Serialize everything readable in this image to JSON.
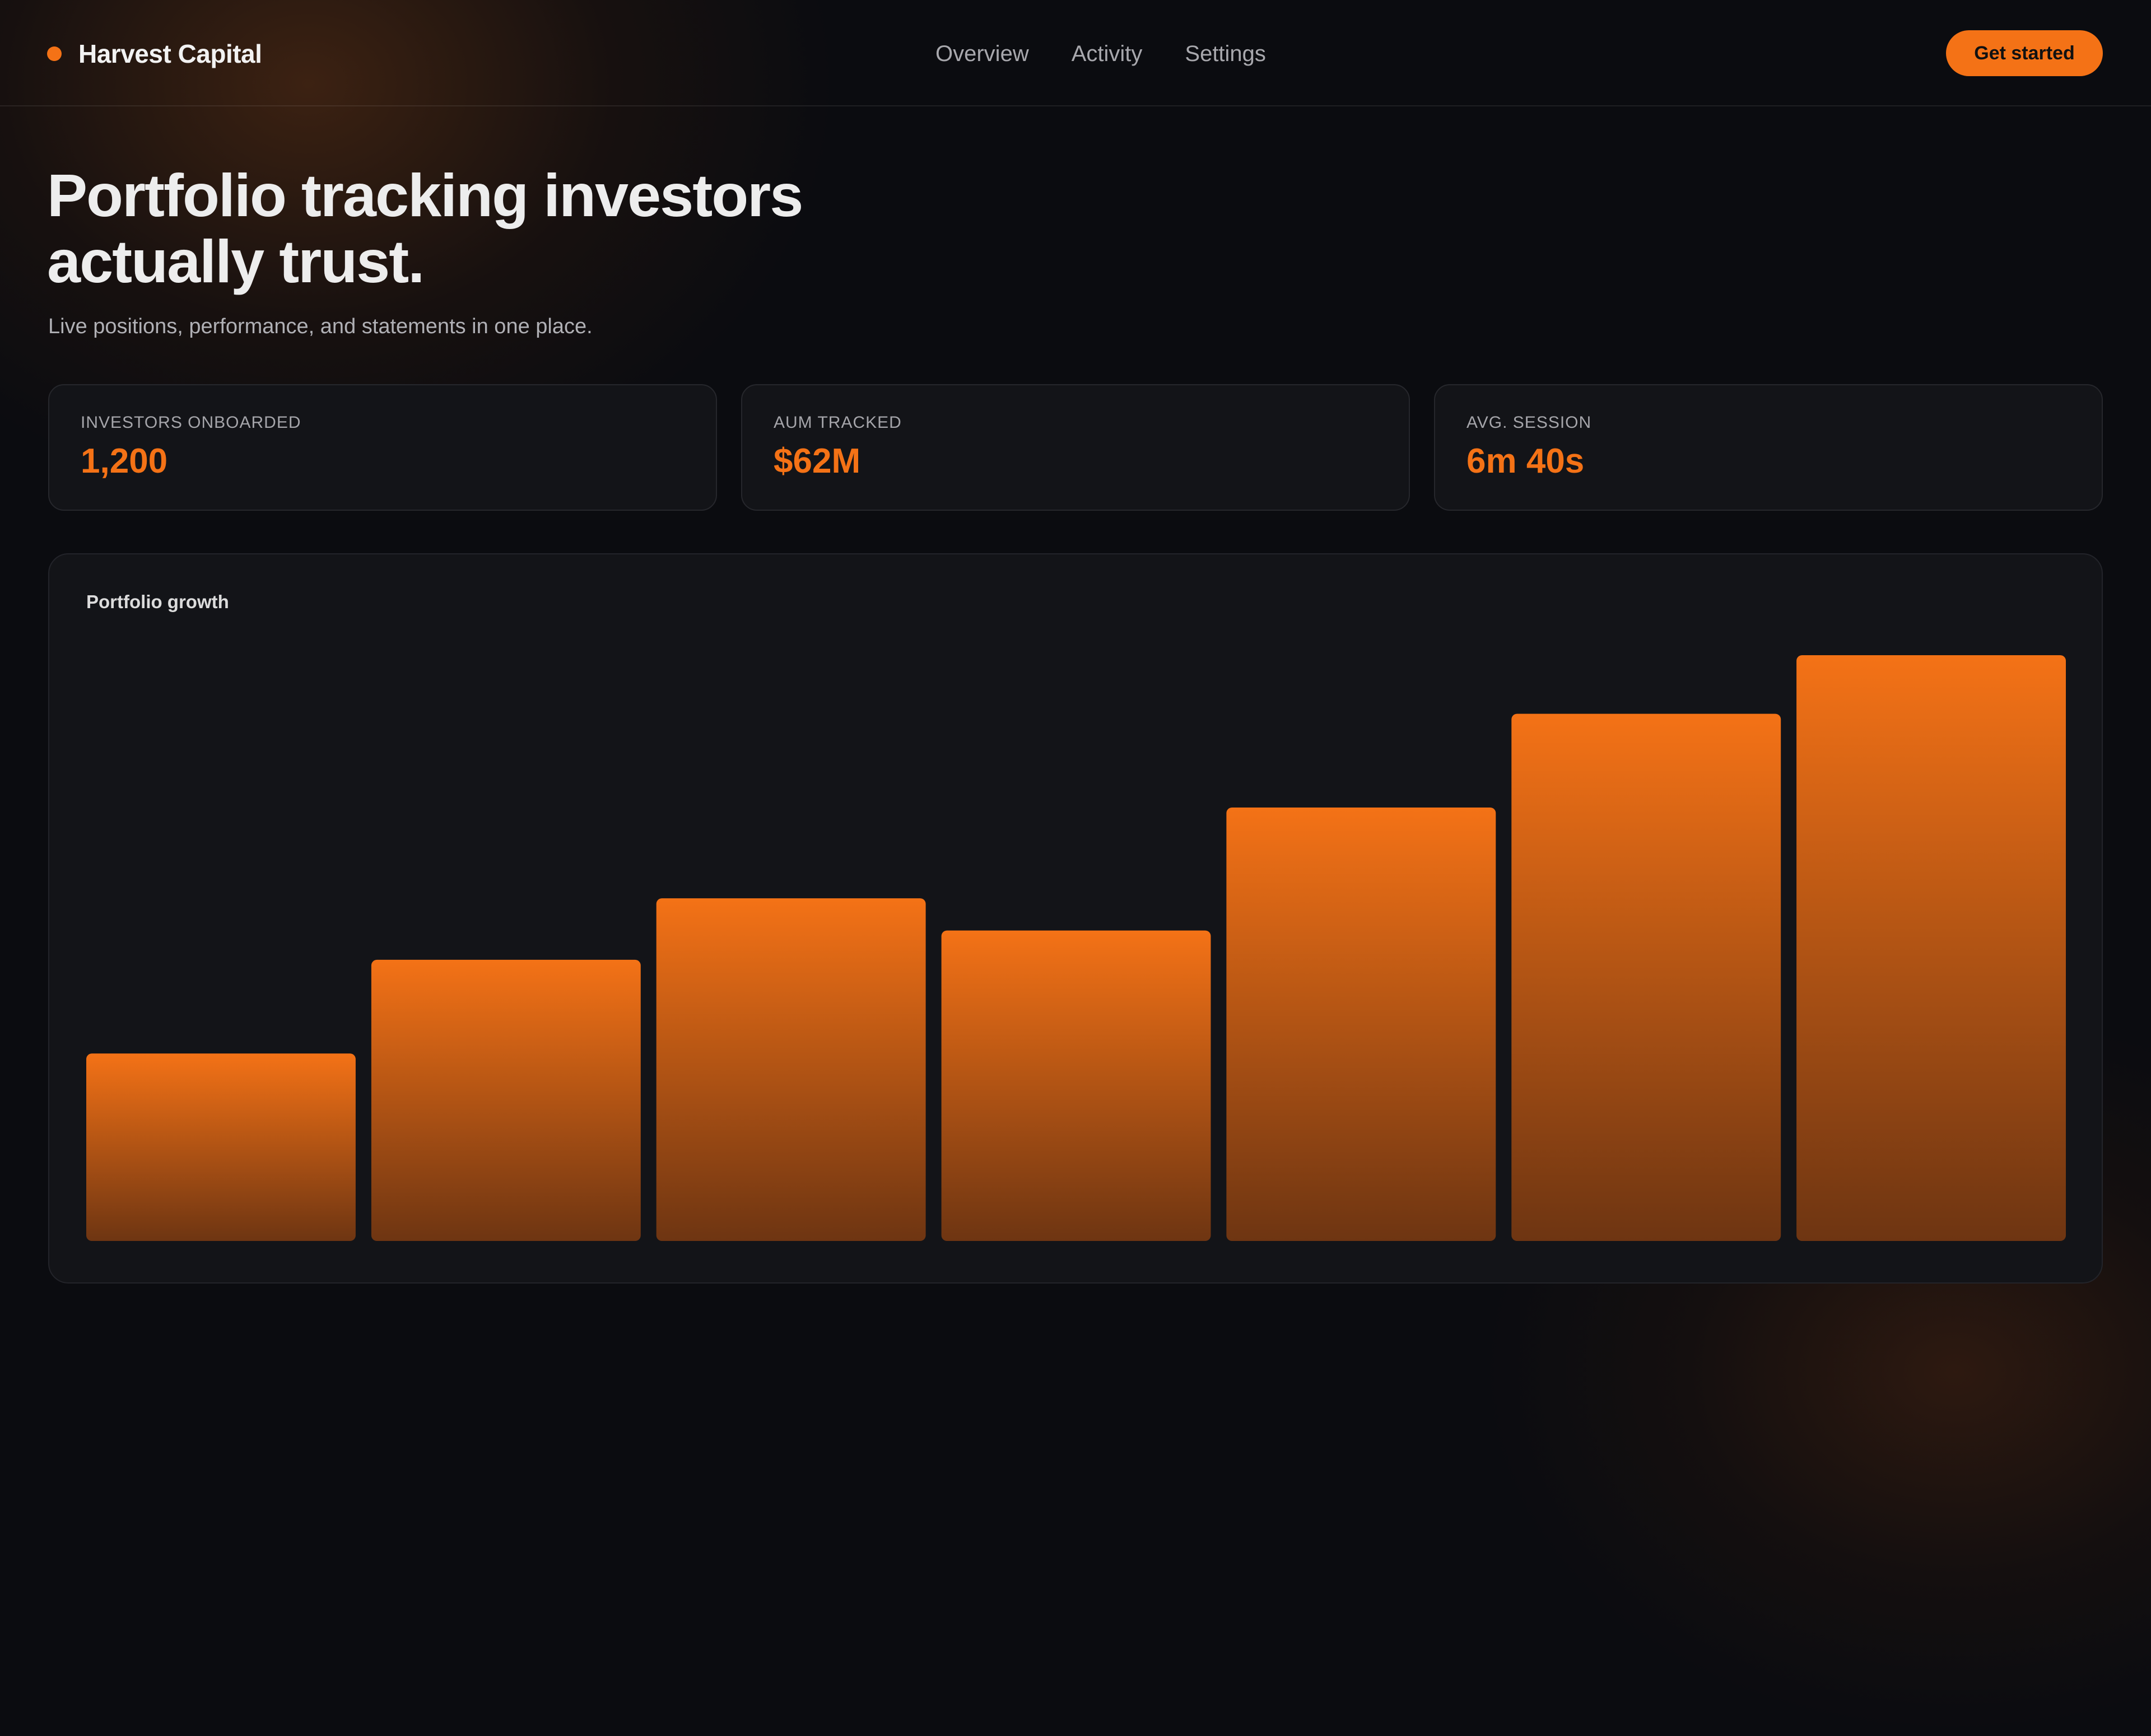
{
  "brand": {
    "name": "Harvest Capital",
    "dot_color": "#f47216"
  },
  "nav": {
    "items": [
      "Overview",
      "Activity",
      "Settings"
    ]
  },
  "cta": {
    "label": "Get started"
  },
  "hero": {
    "title_line1": "Portfolio tracking investors",
    "title_line2": "actually trust.",
    "subtitle": "Live positions, performance, and statements in one place."
  },
  "stats": [
    {
      "label": "INVESTORS ONBOARDED",
      "value": "1,200"
    },
    {
      "label": "AUM TRACKED",
      "value": "$62M"
    },
    {
      "label": "AVG. SESSION",
      "value": "6m 40s"
    }
  ],
  "chart_data": {
    "type": "bar",
    "title": "Portfolio growth",
    "xlabel": "",
    "ylabel": "",
    "values": [
      32,
      48,
      58.5,
      53,
      74,
      90,
      100
    ],
    "ylim": [
      0,
      100
    ],
    "grid": false,
    "bar_color_top": "#f47216",
    "bar_color_bottom": "#6e3512"
  }
}
